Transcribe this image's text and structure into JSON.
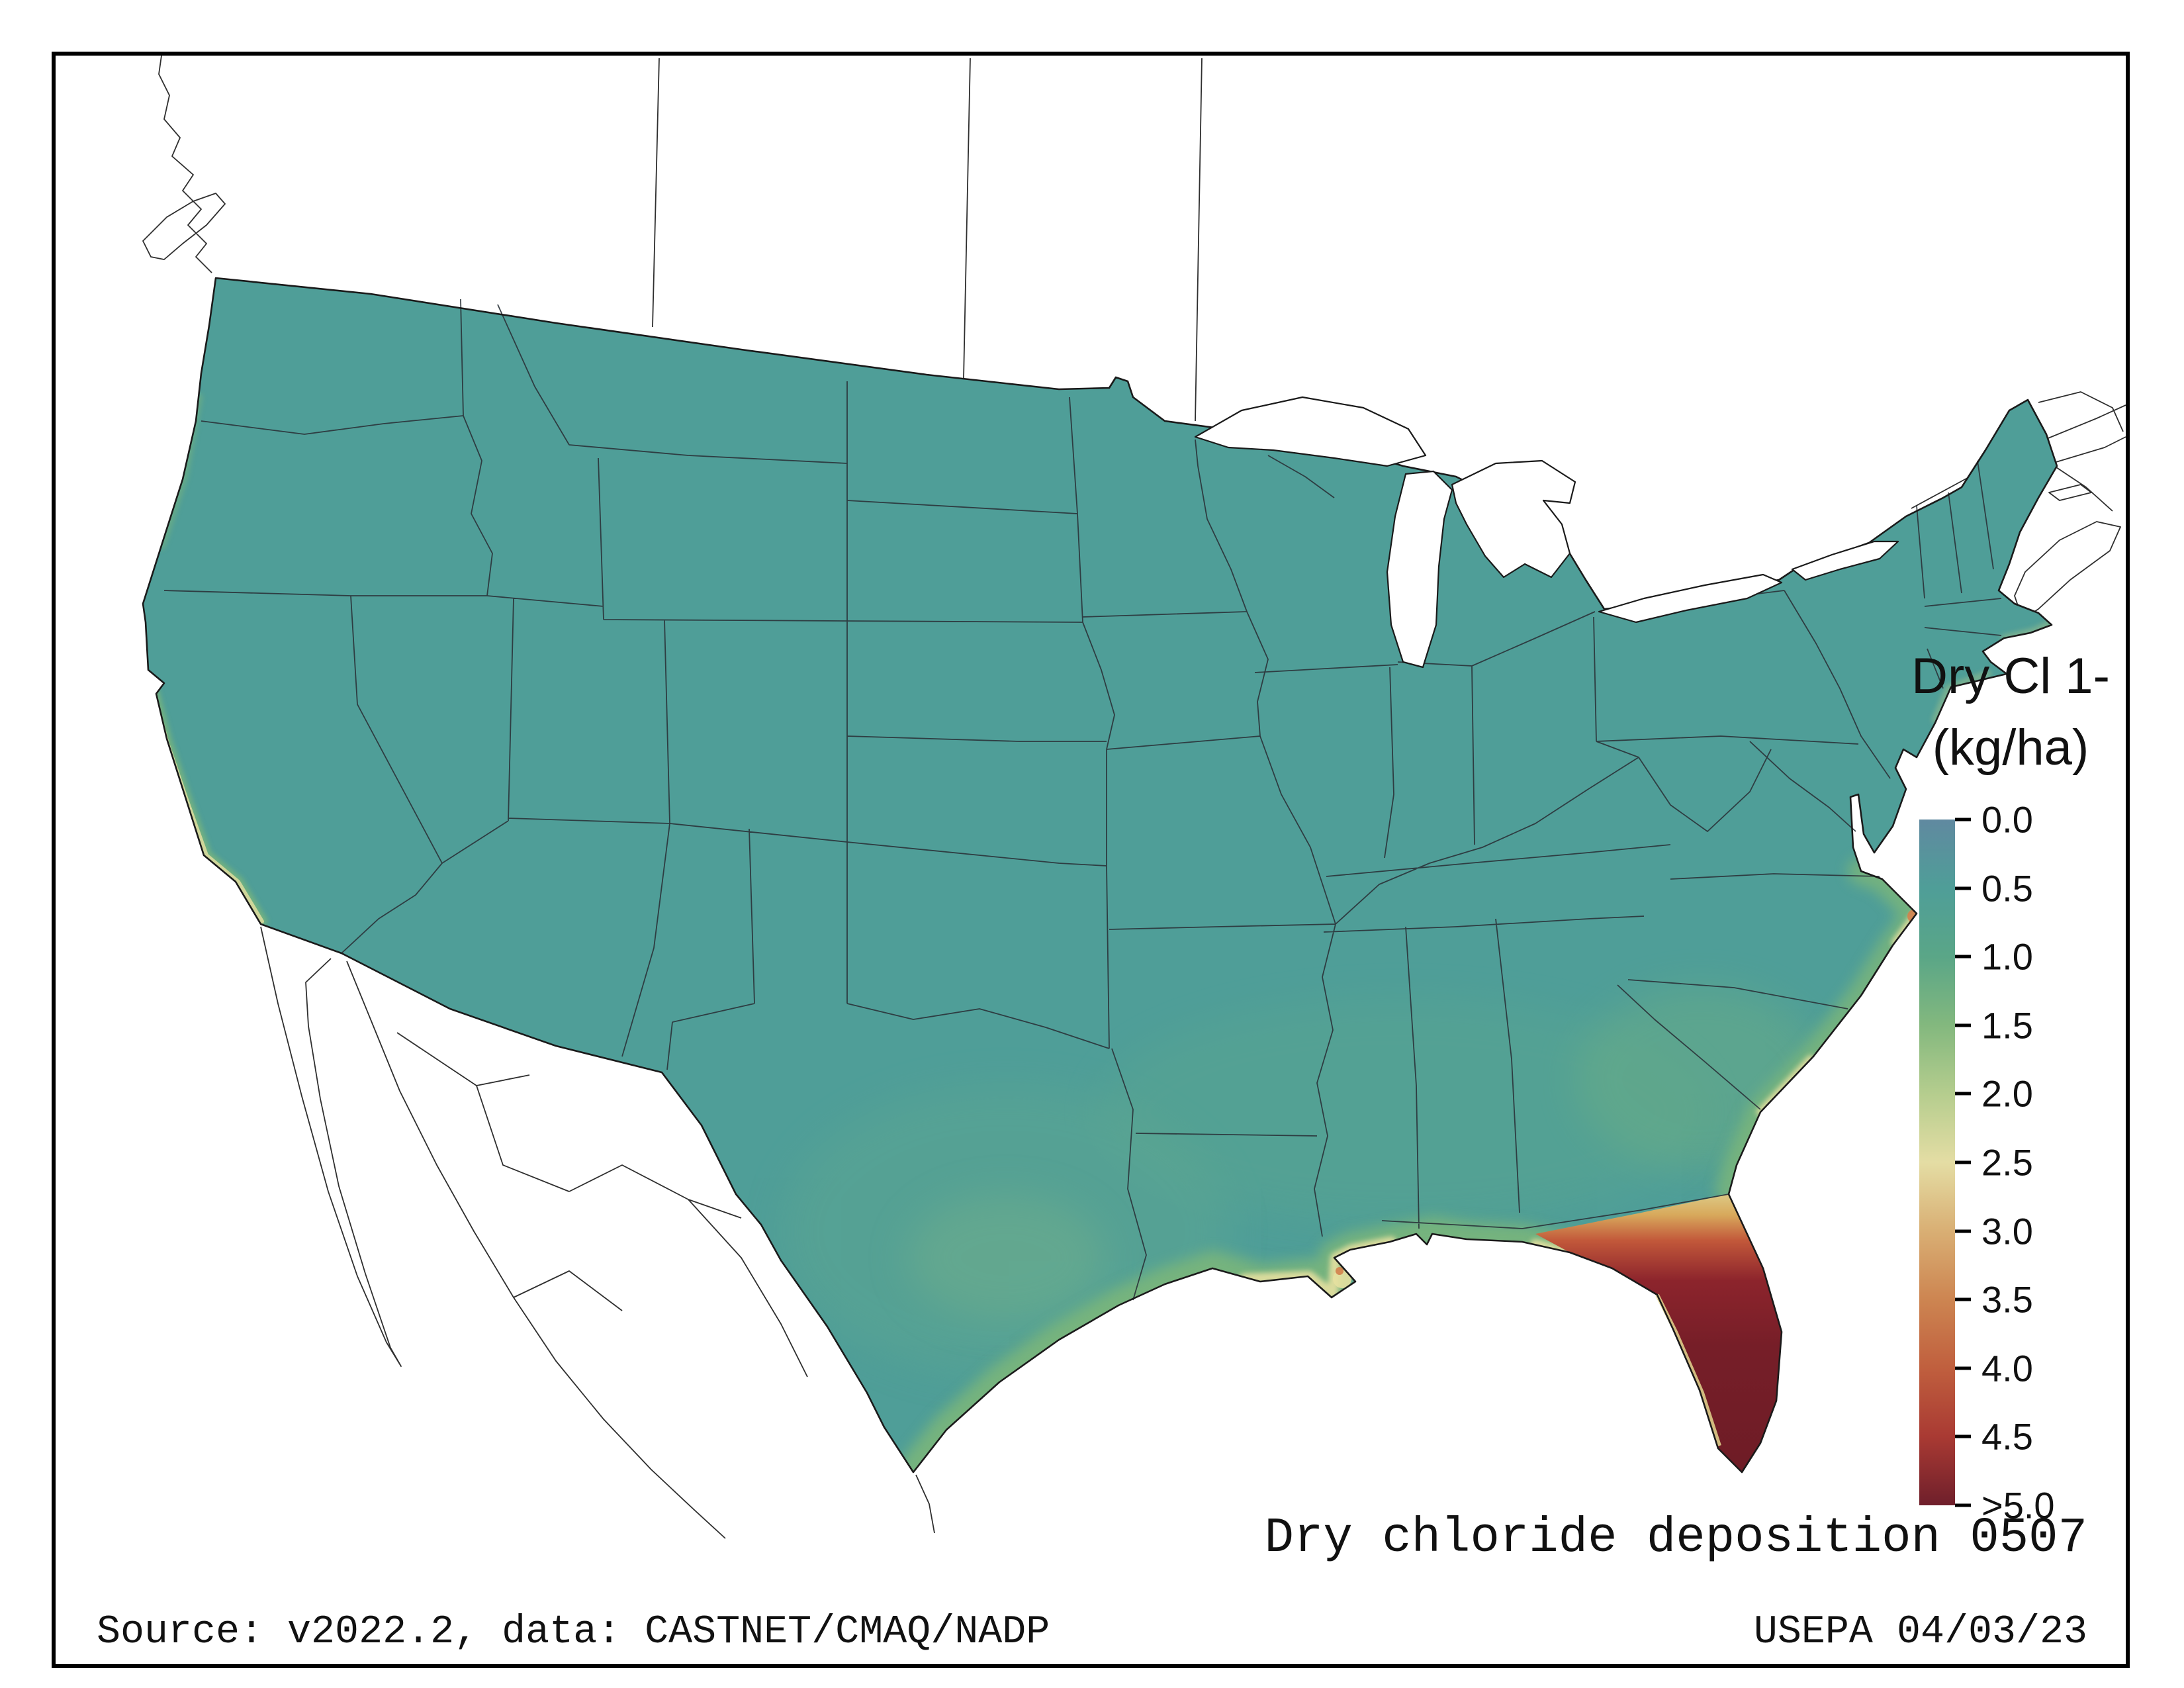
{
  "page": {
    "background": "#ffffff",
    "frame_border": "#000000"
  },
  "legend": {
    "title_line1": "Dry Cl 1-",
    "title_line2": "(kg/ha)",
    "tick_labels": [
      "0.0",
      "0.5",
      "1.0",
      "1.5",
      "2.0",
      "2.5",
      "3.0",
      "3.5",
      "4.0",
      "4.5",
      ">5.0"
    ],
    "gradient_stops": [
      "#6089a0",
      "#4f9e98",
      "#5aa687",
      "#83b87e",
      "#b5cd8e",
      "#e4dda4",
      "#d9af74",
      "#cd8551",
      "#c05f3e",
      "#a93a33",
      "#6f1f2b"
    ]
  },
  "captions": {
    "plot_title": "Dry chloride deposition 0507",
    "source": "Source: v2022.2, data: CASTNET/CMAQ/NADP",
    "agency": "USEPA 04/03/23"
  },
  "map": {
    "land_base_color": "#4f9e98",
    "coastal_band_color": "#7db779",
    "fringe_color": "#e6e0a0",
    "hotspot_color": "#6f1f2b",
    "water_color": "#ffffff",
    "hotspot_region": "Florida peninsula"
  },
  "chart_data": {
    "type": "heatmap",
    "title": "Dry chloride deposition 0507",
    "variable": "Dry Cl 1-",
    "units": "kg/ha",
    "colorbar_ticks": [
      "0.0",
      "0.5",
      "1.0",
      "1.5",
      "2.0",
      "2.5",
      "3.0",
      "3.5",
      "4.0",
      "4.5",
      ">5.0"
    ],
    "legend_position": "right",
    "regions": [
      {
        "region": "Interior contiguous US",
        "value_kg_ha": 0.5
      },
      {
        "region": "Texas and central Gulf Coast band",
        "value_kg_ha": 1.0
      },
      {
        "region": "Louisiana delta fringe",
        "value_kg_ha": 2.5
      },
      {
        "region": "Southeast Atlantic coast (GA-NC)",
        "value_kg_ha": 1.5
      },
      {
        "region": "Outer Banks coastal fringe",
        "value_kg_ha": 3.0
      },
      {
        "region": "California coastal fringe",
        "value_kg_ha": 1.5
      },
      {
        "region": "North Florida transition band",
        "value_kg_ha": 3.0
      },
      {
        "region": "Florida peninsula",
        "value_kg_ha": 5.0
      }
    ]
  }
}
